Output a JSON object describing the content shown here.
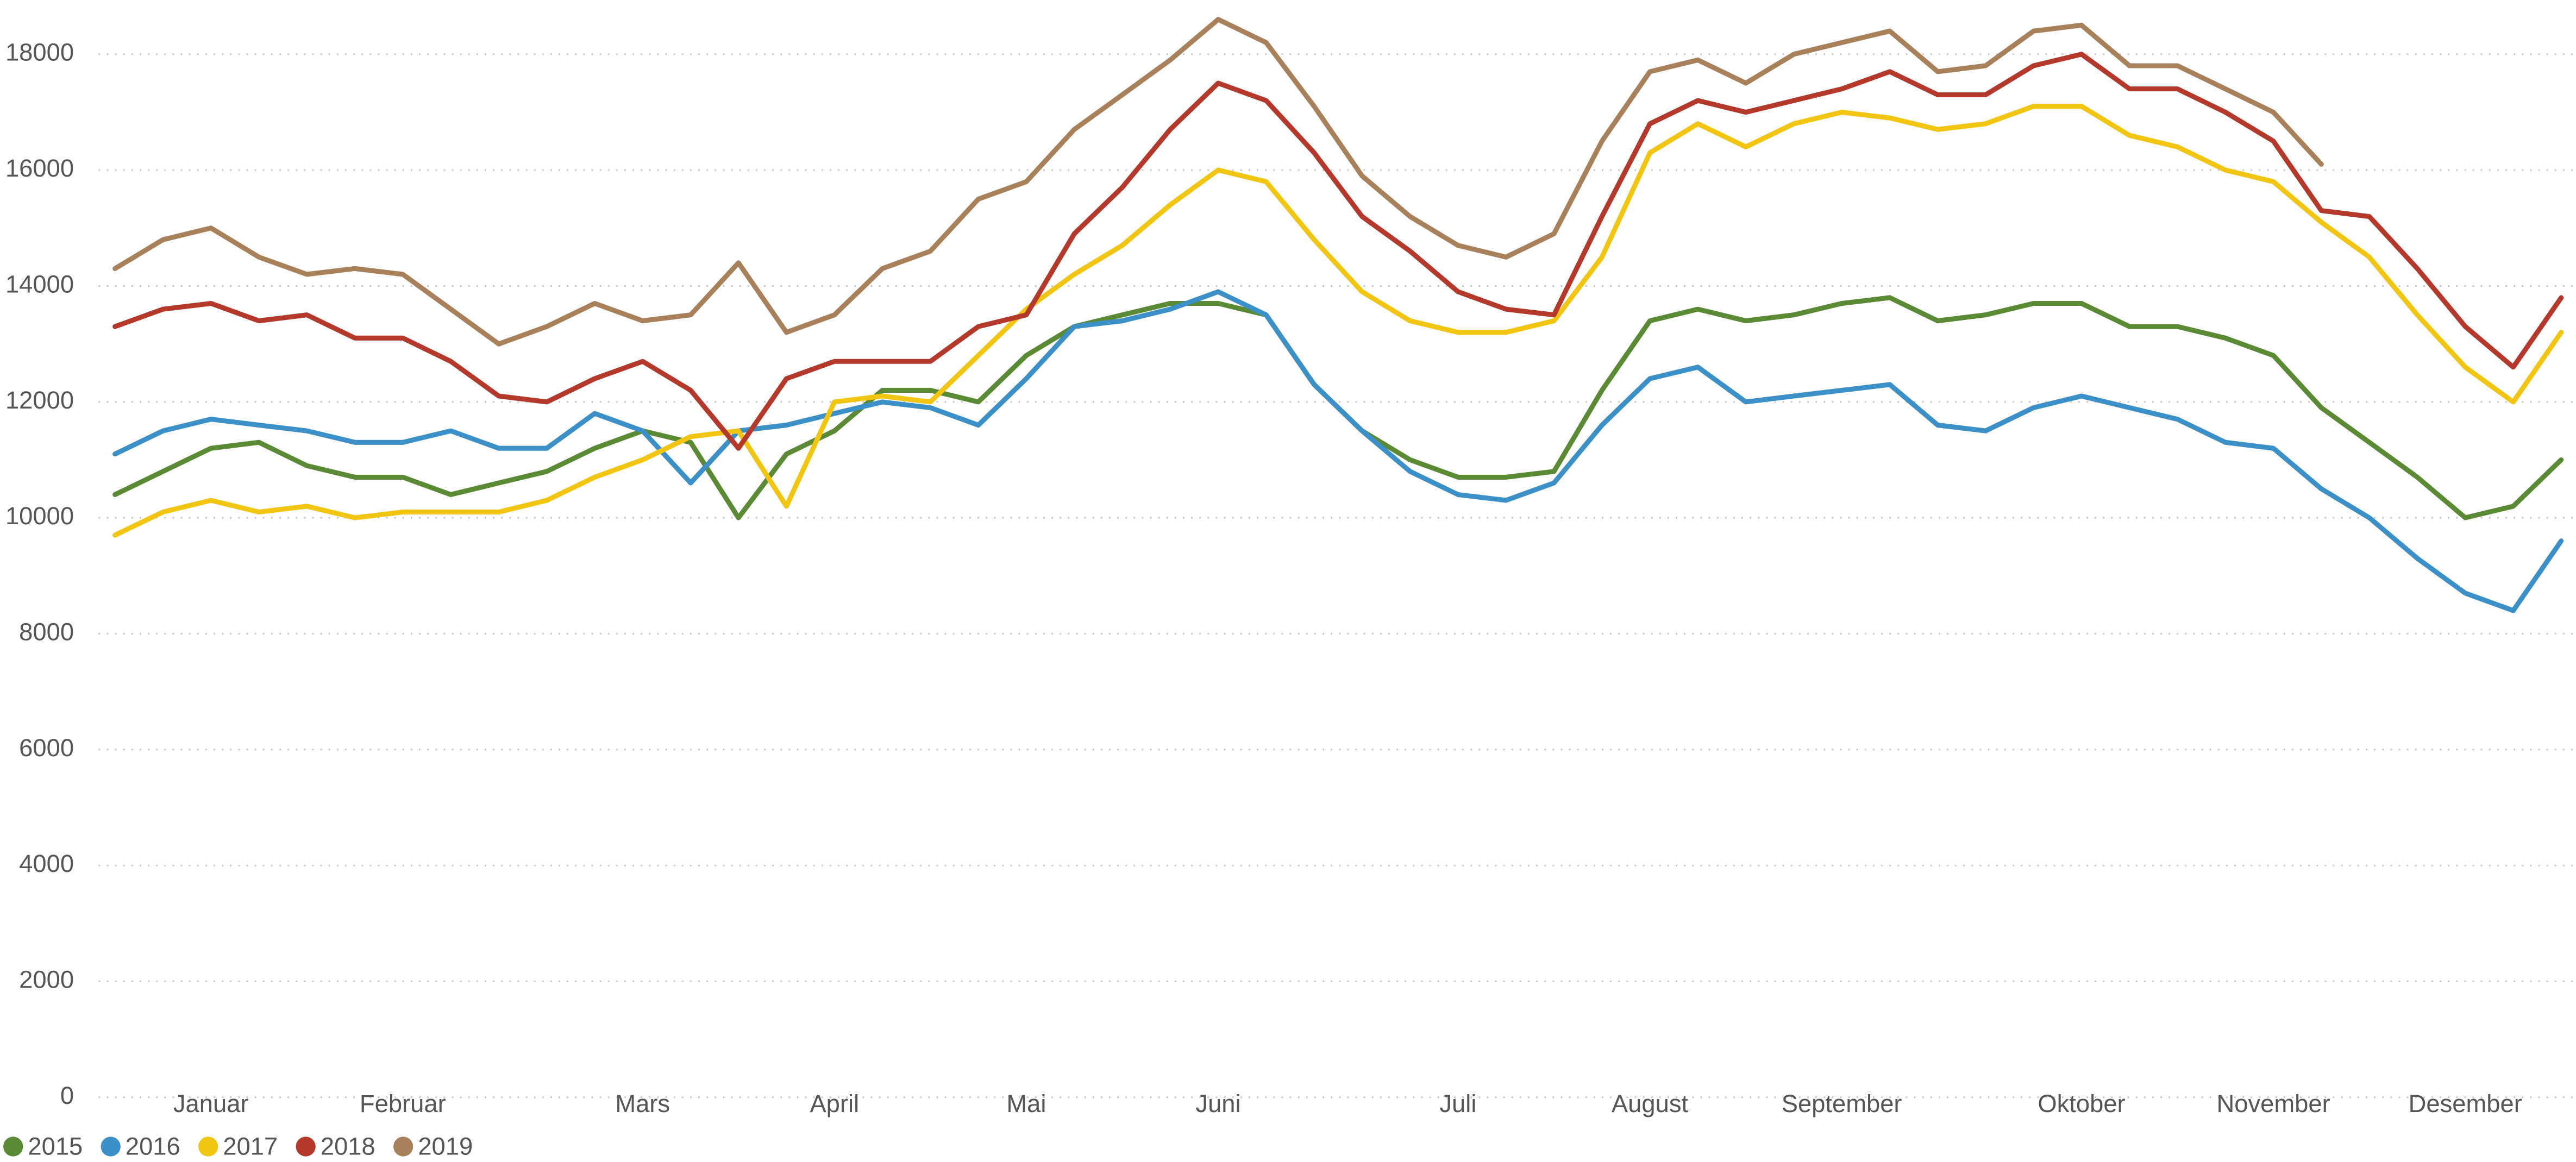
{
  "chart_data": {
    "type": "line",
    "categories": [
      null,
      null,
      "Januar",
      null,
      null,
      null,
      "Februar",
      null,
      null,
      null,
      null,
      "Mars",
      null,
      null,
      null,
      "April",
      null,
      null,
      null,
      "Mai",
      null,
      null,
      null,
      "Juni",
      null,
      null,
      null,
      null,
      "Juli",
      null,
      null,
      null,
      "August",
      null,
      null,
      null,
      "September",
      null,
      null,
      null,
      null,
      "Oktober",
      null,
      null,
      null,
      "November",
      null,
      null,
      null,
      "Desember",
      null,
      null
    ],
    "series": [
      {
        "name": "2015",
        "color": "#5a8a34",
        "values": [
          10400,
          10800,
          11200,
          11300,
          10900,
          10700,
          10700,
          10400,
          10600,
          10800,
          11200,
          11500,
          11300,
          10000,
          11100,
          11500,
          12200,
          12200,
          12000,
          12800,
          13300,
          13500,
          13700,
          13700,
          13500,
          12300,
          11500,
          11000,
          10700,
          10700,
          10800,
          12200,
          13400,
          13600,
          13400,
          13500,
          13700,
          13800,
          13400,
          13500,
          13700,
          13700,
          13300,
          13300,
          13100,
          12800,
          11900,
          11300,
          10700,
          10000,
          10200,
          11000
        ]
      },
      {
        "name": "2016",
        "color": "#3c90c8",
        "values": [
          11100,
          11500,
          11700,
          11600,
          11500,
          11300,
          11300,
          11500,
          11200,
          11200,
          11800,
          11500,
          10600,
          11500,
          11600,
          11800,
          12000,
          11900,
          11600,
          12400,
          13300,
          13400,
          13600,
          13900,
          13500,
          12300,
          11500,
          10800,
          10400,
          10300,
          10600,
          11600,
          12400,
          12600,
          12000,
          12100,
          12200,
          12300,
          11600,
          11500,
          11900,
          12100,
          11900,
          11700,
          11300,
          11200,
          10500,
          10000,
          9300,
          8700,
          8400,
          9600
        ]
      },
      {
        "name": "2017",
        "color": "#f2c511",
        "values": [
          9700,
          10100,
          10300,
          10100,
          10200,
          10000,
          10100,
          10100,
          10100,
          10300,
          10700,
          11000,
          11400,
          11500,
          10200,
          12000,
          12100,
          12000,
          12800,
          13600,
          14200,
          14700,
          15400,
          16000,
          15800,
          14800,
          13900,
          13400,
          13200,
          13200,
          13400,
          14500,
          16300,
          16800,
          16400,
          16800,
          17000,
          16900,
          16700,
          16800,
          17100,
          17100,
          16600,
          16400,
          16000,
          15800,
          15100,
          14500,
          13500,
          12600,
          12000,
          13200
        ]
      },
      {
        "name": "2018",
        "color": "#b5392b",
        "values": [
          13300,
          13600,
          13700,
          13400,
          13500,
          13100,
          13100,
          12700,
          12100,
          12000,
          12400,
          12700,
          12200,
          11200,
          12400,
          12700,
          12700,
          12700,
          13300,
          13500,
          14900,
          15700,
          16700,
          17500,
          17200,
          16300,
          15200,
          14600,
          13900,
          13600,
          13500,
          15200,
          16800,
          17200,
          17000,
          17200,
          17400,
          17700,
          17300,
          17300,
          17800,
          18000,
          17400,
          17400,
          17000,
          16500,
          15300,
          15200,
          14300,
          13300,
          12600,
          13800
        ]
      },
      {
        "name": "2019",
        "color": "#a8805a",
        "values": [
          14300,
          14800,
          15000,
          14500,
          14200,
          14300,
          14200,
          13600,
          13000,
          13300,
          13700,
          13400,
          13500,
          14400,
          13200,
          13500,
          14300,
          14600,
          15500,
          15800,
          16700,
          17300,
          17900,
          18600,
          18200,
          17100,
          15900,
          15200,
          14700,
          14500,
          14900,
          16500,
          17700,
          17900,
          17500,
          18000,
          18200,
          18400,
          17700,
          17800,
          18400,
          18500,
          17800,
          17800,
          17400,
          17000,
          16100,
          null,
          null,
          null,
          null,
          null
        ]
      }
    ],
    "ylim": [
      0,
      19000
    ],
    "yticks": [
      0,
      2000,
      4000,
      6000,
      8000,
      10000,
      12000,
      14000,
      16000,
      18000
    ],
    "grid": true,
    "legend": "bottom-left"
  }
}
